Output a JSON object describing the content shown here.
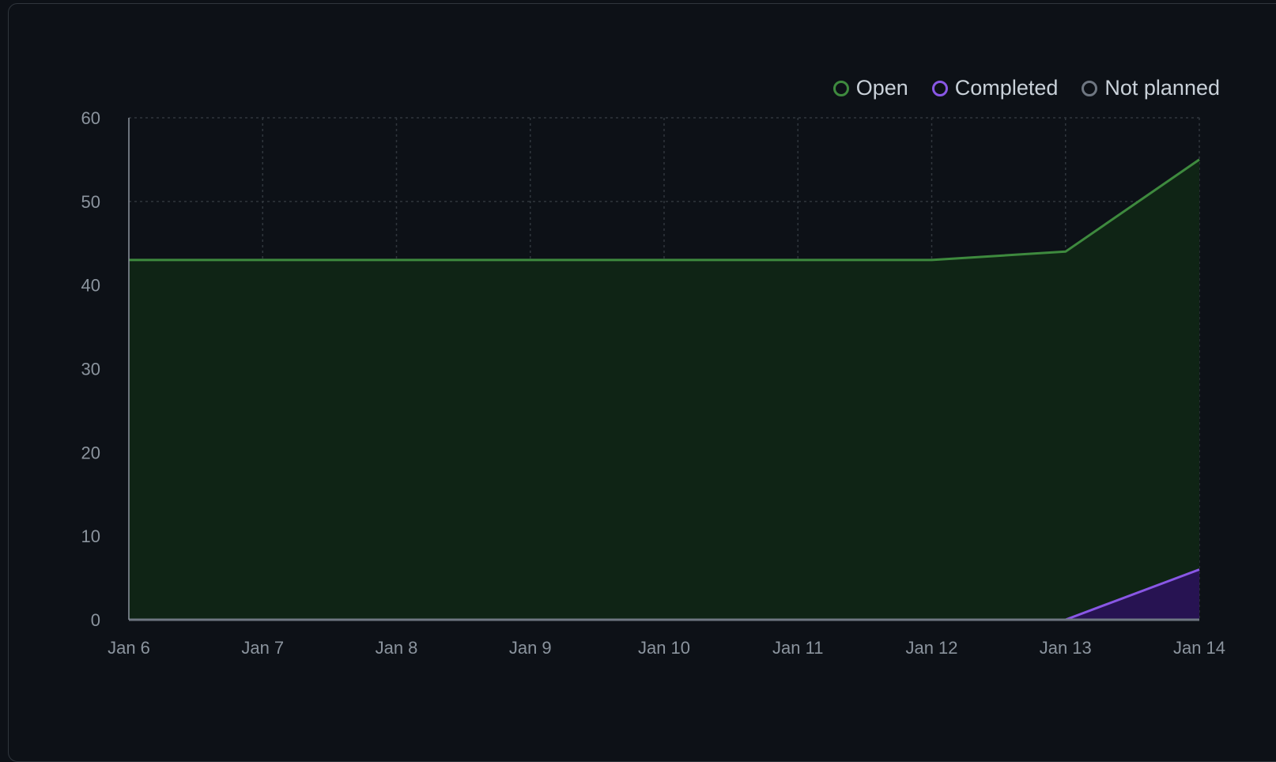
{
  "colors": {
    "background": "#0d1117",
    "grid": "#30363d",
    "axis": "#8b949e",
    "open_line": "#3e8a3e",
    "open_fill": "#0f2415",
    "completed_line": "#8957e5",
    "completed_fill": "#271352",
    "not_planned": "#6e7681"
  },
  "legend": [
    {
      "label": "Open",
      "color": "#3e8a3e"
    },
    {
      "label": "Completed",
      "color": "#8957e5"
    },
    {
      "label": "Not planned",
      "color": "#6e7681"
    }
  ],
  "chart_data": {
    "type": "area",
    "title": "",
    "xlabel": "",
    "ylabel": "",
    "x": [
      "Jan 6",
      "Jan 7",
      "Jan 8",
      "Jan 9",
      "Jan 10",
      "Jan 11",
      "Jan 12",
      "Jan 13",
      "Jan 14"
    ],
    "ylim": [
      0,
      60
    ],
    "yticks": [
      0,
      10,
      20,
      30,
      40,
      50,
      60
    ],
    "grid": true,
    "legend_position": "top-right",
    "series": [
      {
        "name": "Open",
        "values": [
          43,
          43,
          43,
          43,
          43,
          43,
          43,
          44,
          55
        ]
      },
      {
        "name": "Completed",
        "values": [
          0,
          0,
          0,
          0,
          0,
          0,
          0,
          0,
          6
        ]
      },
      {
        "name": "Not planned",
        "values": [
          0,
          0,
          0,
          0,
          0,
          0,
          0,
          0,
          0
        ]
      }
    ]
  }
}
